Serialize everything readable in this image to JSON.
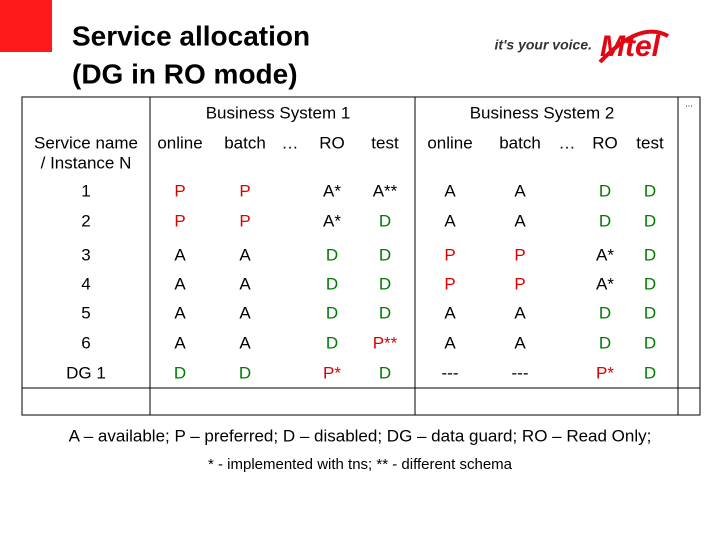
{
  "title": [
    "Service allocation",
    "(DG in RO mode)"
  ],
  "logo": {
    "slogan": "it's your voice.",
    "brand": "Mtel"
  },
  "table": {
    "group_headers": [
      "Business System 1",
      "Business System 2"
    ],
    "corner": "...",
    "first_header": [
      "Service name",
      "/ Instance N"
    ],
    "columns": [
      "online",
      "batch",
      "…",
      "RO",
      "test",
      "online",
      "batch",
      "…",
      "RO",
      "test"
    ],
    "rows": [
      [
        "1",
        "P",
        "P",
        "A*",
        "A**",
        "A",
        "A",
        "D",
        "D"
      ],
      [
        "2",
        "P",
        "P",
        "A*",
        "D",
        "A",
        "A",
        "D",
        "D"
      ],
      [
        "3",
        "A",
        "A",
        "D",
        "D",
        "P",
        "P",
        "A*",
        "D"
      ],
      [
        "4",
        "A",
        "A",
        "D",
        "D",
        "P",
        "P",
        "A*",
        "D"
      ],
      [
        "5",
        "A",
        "A",
        "D",
        "D",
        "A",
        "A",
        "D",
        "D"
      ],
      [
        "6",
        "A",
        "A",
        "D",
        "P**",
        "A",
        "A",
        "D",
        "D"
      ],
      [
        "DG 1",
        "D",
        "D",
        "P*",
        "D",
        "---",
        "---",
        "P*",
        "D"
      ]
    ]
  },
  "legend": [
    "A – available; P – preferred; D – disabled; DG – data guard; RO – Read Only;",
    "* - implemented with tns; ** - different schema"
  ]
}
